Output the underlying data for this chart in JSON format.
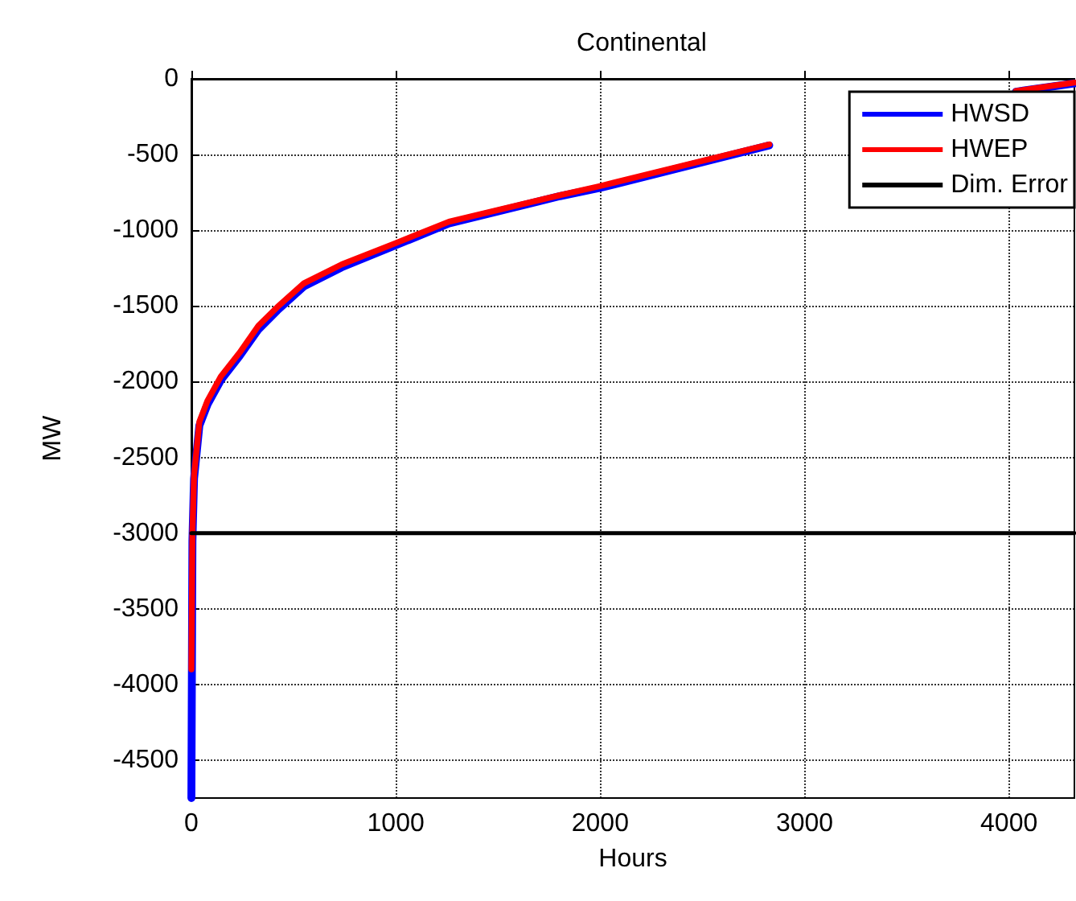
{
  "chart_data": {
    "type": "line",
    "title": "Continental",
    "xlabel": "Hours",
    "ylabel": "MW",
    "xlim": [
      0,
      4320
    ],
    "xticks": [
      0,
      1000,
      2000,
      3000,
      4000
    ],
    "ylim": [
      -4750,
      0
    ],
    "yticks": [
      0,
      -500,
      -1000,
      -1500,
      -2000,
      -2500,
      -3000,
      -3500,
      -4000,
      -4500
    ],
    "grid": true,
    "legend": "top right",
    "marker": "none",
    "line_style": "solid",
    "series": [
      {
        "name": "HWSD",
        "color": "#0000ff",
        "x": [
          0,
          5,
          13,
          39,
          79,
          144,
          236,
          328,
          420,
          551,
          735,
          998,
          1260,
          1803,
          2000,
          2827,
          3400,
          4034,
          4320
        ],
        "values": [
          -4750,
          -3050,
          -2640,
          -2290,
          -2150,
          -1990,
          -1830,
          -1655,
          -1530,
          -1370,
          -1245,
          -1100,
          -955,
          -775,
          -720,
          -440,
          null,
          -85,
          -30
        ]
      },
      {
        "name": "HWEP",
        "color": "#ff0000",
        "x": [
          0,
          5,
          13,
          39,
          79,
          144,
          236,
          328,
          420,
          551,
          735,
          998,
          1260,
          1803,
          2000,
          2827,
          3400,
          4034,
          4320
        ],
        "values": [
          -3900,
          -3000,
          -2618,
          -2265,
          -2125,
          -1966,
          -1808,
          -1631,
          -1508,
          -1350,
          -1226,
          -1086,
          -944,
          -768,
          -708,
          -433,
          null,
          -81,
          -25
        ]
      },
      {
        "name": "Dim. Error",
        "color": "#000000",
        "x": [
          0,
          4320
        ],
        "values": [
          -3000,
          -3000
        ]
      }
    ]
  }
}
